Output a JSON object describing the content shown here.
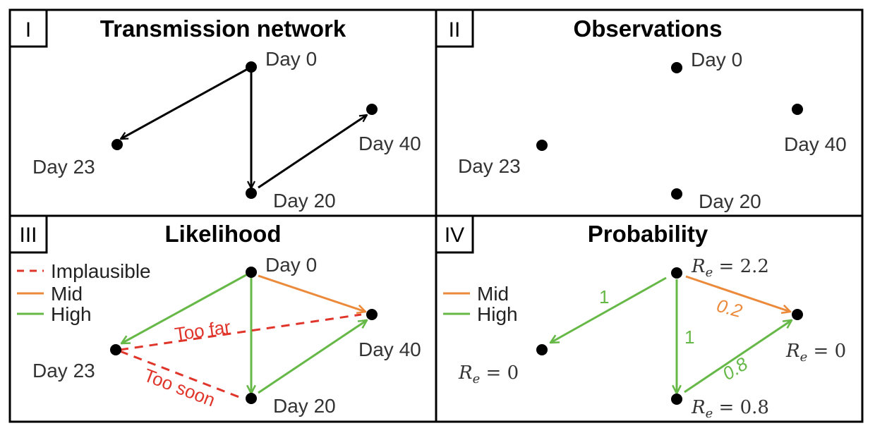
{
  "colors": {
    "black": "#000000",
    "mid": "#ec8a3c",
    "high": "#66b847",
    "implausible": "#e0352b",
    "label": "#333333"
  },
  "panels": [
    {
      "id": "I",
      "roman": "I",
      "title": "Transmission network"
    },
    {
      "id": "II",
      "roman": "II",
      "title": "Observations"
    },
    {
      "id": "III",
      "roman": "III",
      "title": "Likelihood"
    },
    {
      "id": "IV",
      "roman": "IV",
      "title": "Probability"
    }
  ],
  "nodes": {
    "day0": "Day 0",
    "day20": "Day 20",
    "day23": "Day 23",
    "day40": "Day 40"
  },
  "legend": {
    "implausible": "Implausible",
    "mid": "Mid",
    "high": "High"
  },
  "annotations": {
    "too_far": "Too far",
    "too_soon": "Too soon"
  },
  "probabilities": {
    "p_0_23": "1",
    "p_0_20": "1",
    "p_0_40": "0.2",
    "p_20_40": "0.8"
  },
  "reproduction": {
    "symbol": "R",
    "subscript": "e",
    "day0": "2.2",
    "day20": "0.8",
    "day23": "0",
    "day40": "0"
  }
}
